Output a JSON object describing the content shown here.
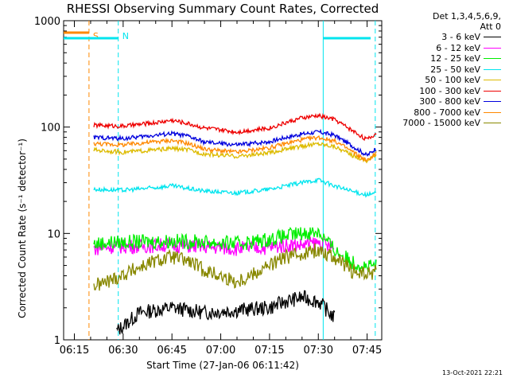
{
  "chart_data": {
    "type": "line",
    "title": "RHESSI Observing Summary Count Rates, Corrected",
    "xlabel": "Start Time (27-Jan-06 06:11:42)",
    "ylabel": "Corrected Count Rate (s⁻¹ detector⁻¹)",
    "y_scale": "log",
    "ylim": [
      1,
      1000
    ],
    "xlim": [
      "06:11:42",
      "07:49:30"
    ],
    "x_tick_labels": [
      "06:15",
      "06:30",
      "06:45",
      "07:00",
      "07:15",
      "07:30",
      "07:45"
    ],
    "y_tick_labels": [
      "1",
      "10",
      "100",
      "1000"
    ],
    "grid": false,
    "legend_position": "top-right",
    "detector_info": [
      "Det 1,3,4,5,6,9,",
      "Att 0"
    ],
    "footer_timestamp": "13-Oct-2021 22:21",
    "markers": [
      {
        "label": "S",
        "color": "#ff8800",
        "time": "06:19:30",
        "style": "dashed"
      },
      {
        "label": "N",
        "color": "#00e5ee",
        "time": "06:28:30",
        "style": "dashed"
      },
      {
        "label": "",
        "color": "#00e5ee",
        "time": "07:31:30",
        "style": "solid"
      },
      {
        "label": "",
        "color": "#00e5ee",
        "time": "07:47:30",
        "style": "dashed"
      }
    ],
    "series": [
      {
        "name": "3 - 6 keV",
        "color": "#000000",
        "x": [
          "06:28",
          "06:35",
          "06:45",
          "06:55",
          "07:05",
          "07:15",
          "07:20",
          "07:25",
          "07:30",
          "07:35"
        ],
        "values": [
          1.2,
          1.8,
          2.0,
          1.8,
          1.9,
          2.0,
          2.3,
          2.5,
          2.3,
          1.6
        ]
      },
      {
        "name": "6 - 12 keV",
        "color": "#ff00ff",
        "x": [
          "06:21",
          "06:25",
          "06:35",
          "06:45",
          "06:55",
          "07:05",
          "07:15",
          "07:20",
          "07:25",
          "07:30",
          "07:35"
        ],
        "values": [
          7.2,
          7.5,
          7.6,
          7.8,
          7.5,
          7.2,
          7.4,
          7.8,
          7.8,
          8.2,
          7.2
        ]
      },
      {
        "name": "12 - 25 keV",
        "color": "#00ee00",
        "x": [
          "06:21",
          "06:25",
          "06:35",
          "06:45",
          "06:55",
          "07:05",
          "07:15",
          "07:20",
          "07:25",
          "07:30",
          "07:35",
          "07:40",
          "07:45",
          "07:48"
        ],
        "values": [
          8.0,
          8.2,
          8.3,
          8.5,
          8.3,
          8.0,
          8.8,
          9.5,
          10.0,
          10.5,
          7.0,
          5.5,
          4.8,
          5.0
        ]
      },
      {
        "name": "25 - 50 keV",
        "color": "#00e5ee",
        "x": [
          "06:21",
          "06:30",
          "06:40",
          "06:45",
          "06:55",
          "07:05",
          "07:15",
          "07:20",
          "07:25",
          "07:30",
          "07:35",
          "07:40",
          "07:45",
          "07:48"
        ],
        "values": [
          26.0,
          25.5,
          27.0,
          28.0,
          25.0,
          24.0,
          26.0,
          28.0,
          30.0,
          32.0,
          28.0,
          25.0,
          23.0,
          24.0
        ]
      },
      {
        "name": "50 - 100 keV",
        "color": "#ddbb00",
        "x": [
          "06:21",
          "06:30",
          "06:40",
          "06:45",
          "06:50",
          "06:55",
          "07:05",
          "07:15",
          "07:20",
          "07:25",
          "07:30",
          "07:35",
          "07:40",
          "07:45",
          "07:48"
        ],
        "values": [
          61.0,
          58.0,
          61.0,
          63.0,
          61.0,
          56.0,
          53.0,
          57.0,
          62.0,
          66.0,
          70.0,
          66.0,
          55.0,
          48.0,
          56.0
        ]
      },
      {
        "name": "100 - 300 keV",
        "color": "#ee0000",
        "x": [
          "06:21",
          "06:30",
          "06:40",
          "06:45",
          "06:50",
          "06:55",
          "07:05",
          "07:15",
          "07:20",
          "07:25",
          "07:30",
          "07:35",
          "07:40",
          "07:45",
          "07:48"
        ],
        "values": [
          104.0,
          102.0,
          110.0,
          116.0,
          108.0,
          98.0,
          90.0,
          98.0,
          110.0,
          122.0,
          128.0,
          118.0,
          95.0,
          76.0,
          88.0
        ]
      },
      {
        "name": "300 - 800 keV",
        "color": "#0000dd",
        "x": [
          "06:21",
          "06:30",
          "06:40",
          "06:45",
          "06:50",
          "06:55",
          "07:05",
          "07:15",
          "07:20",
          "07:25",
          "07:30",
          "07:35",
          "07:40",
          "07:45",
          "07:48"
        ],
        "values": [
          80.0,
          78.0,
          84.0,
          87.0,
          82.0,
          72.0,
          68.0,
          73.0,
          80.0,
          86.0,
          90.0,
          84.0,
          68.0,
          54.0,
          64.0
        ]
      },
      {
        "name": "800 - 7000 keV",
        "color": "#ff8800",
        "x": [
          "06:21",
          "06:30",
          "06:40",
          "06:45",
          "06:50",
          "06:55",
          "07:05",
          "07:15",
          "07:20",
          "07:25",
          "07:30",
          "07:35",
          "07:40",
          "07:45",
          "07:48"
        ],
        "values": [
          70.0,
          68.0,
          73.0,
          75.0,
          70.0,
          62.0,
          58.0,
          64.0,
          70.0,
          76.0,
          80.0,
          74.0,
          60.0,
          48.0,
          58.0
        ]
      },
      {
        "name": "7000 - 15000 keV",
        "color": "#888800",
        "x": [
          "06:21",
          "06:25",
          "06:35",
          "06:40",
          "06:45",
          "06:50",
          "06:55",
          "07:05",
          "07:15",
          "07:20",
          "07:25",
          "07:30",
          "07:35",
          "07:40",
          "07:45",
          "07:48"
        ],
        "values": [
          3.2,
          3.5,
          4.8,
          5.5,
          6.0,
          5.5,
          4.5,
          3.5,
          5.0,
          6.0,
          6.5,
          7.0,
          6.0,
          4.5,
          4.0,
          4.5
        ]
      }
    ]
  }
}
